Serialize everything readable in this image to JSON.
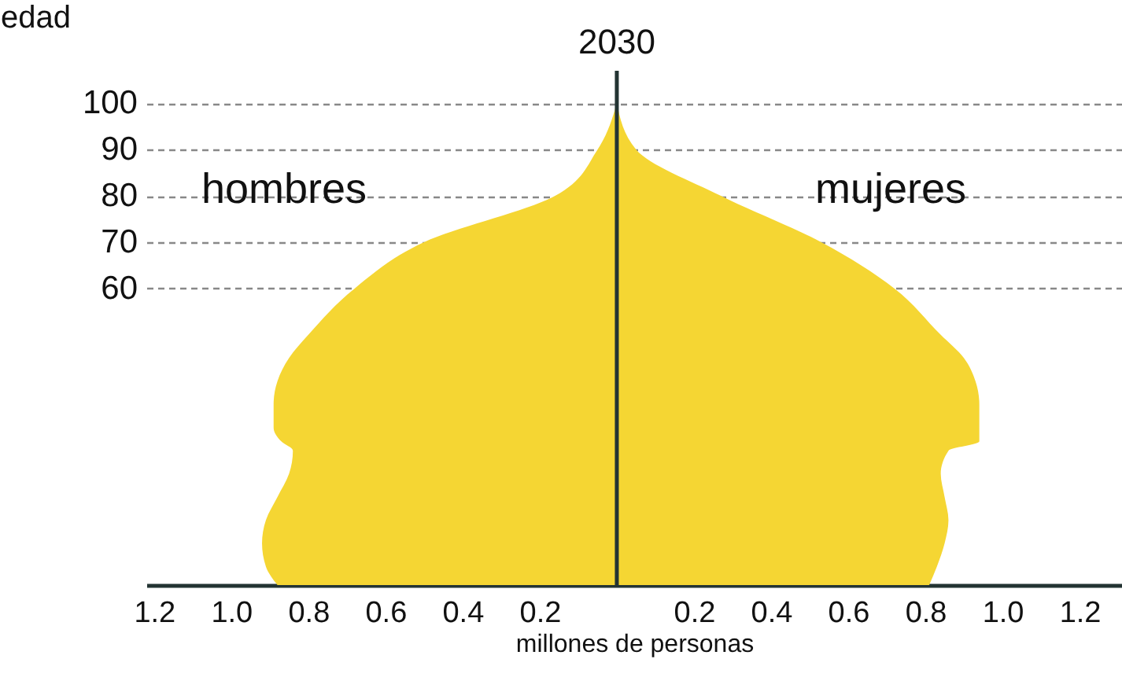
{
  "chart_data": {
    "type": "area",
    "orientation": "horizontal",
    "title": "2030",
    "xlabel": "millones de personas",
    "ylabel": "edad",
    "x": [
      -4,
      0,
      5,
      10,
      15,
      20,
      25,
      27,
      30,
      35,
      40,
      45,
      50,
      60,
      70,
      80,
      90,
      100
    ],
    "series": [
      {
        "name": "hombres",
        "color": "#f5d633",
        "values": [
          -0.88,
          -0.91,
          -0.92,
          -0.91,
          -0.88,
          -0.85,
          -0.84,
          -0.87,
          -0.89,
          -0.89,
          -0.88,
          -0.85,
          -0.8,
          -0.68,
          -0.5,
          -0.16,
          -0.05,
          0
        ]
      },
      {
        "name": "mujeres",
        "color": "#f5d633",
        "values": [
          0.81,
          0.83,
          0.85,
          0.86,
          0.85,
          0.84,
          0.86,
          0.94,
          0.94,
          0.94,
          0.93,
          0.9,
          0.84,
          0.72,
          0.53,
          0.27,
          0.05,
          0
        ]
      }
    ],
    "xlim": [
      -1.22,
      1.31
    ],
    "xticks": [
      {
        "value": -1.2,
        "label": "1.2"
      },
      {
        "value": -1.0,
        "label": "1.0"
      },
      {
        "value": -0.8,
        "label": "0.8"
      },
      {
        "value": -0.6,
        "label": "0.6"
      },
      {
        "value": -0.4,
        "label": "0.4"
      },
      {
        "value": -0.2,
        "label": "0.2"
      },
      0.2,
      0.4,
      0.6,
      0.8,
      {
        "value": 1.0,
        "label": "1.0"
      },
      1.2
    ],
    "ylim": [
      -4,
      107
    ],
    "yticks": [
      60,
      70,
      80,
      90,
      100
    ],
    "grid": "y",
    "legend": false,
    "ref_lines": [
      {
        "axis": "x",
        "value": 0,
        "color": "#233433"
      }
    ]
  }
}
